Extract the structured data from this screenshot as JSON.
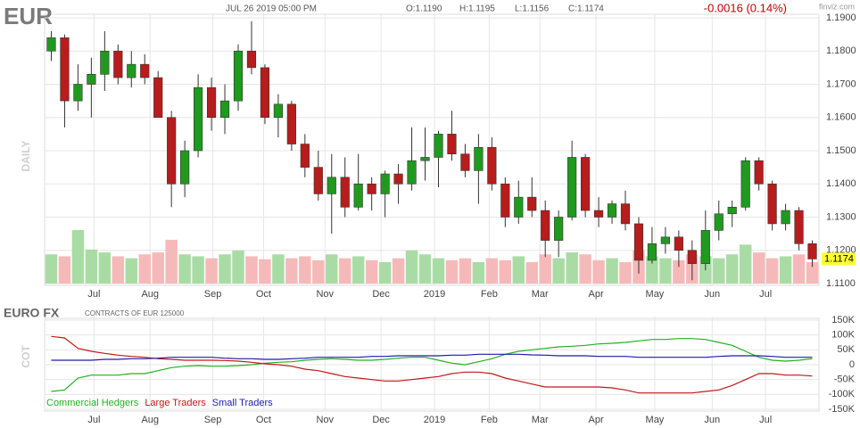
{
  "header": {
    "symbol": "EUR",
    "datetime": "JUL 26 2019 05:00 PM",
    "open": "O:1.1190",
    "high": "H:1.1195",
    "low": "L:1.1156",
    "close": "C:1.1174",
    "change": "-0.0016 (0.14%)",
    "logo": "finviz.com"
  },
  "chart_data": [
    {
      "type": "candlestick",
      "panel_label": "DAILY",
      "open": [
        1.18,
        1.184,
        1.165,
        1.17,
        1.173,
        1.18,
        1.172,
        1.176,
        1.172,
        1.16,
        1.14,
        1.15,
        1.169,
        1.16,
        1.165,
        1.18,
        1.175,
        1.16,
        1.164,
        1.152,
        1.145,
        1.137,
        1.142,
        1.133,
        1.14,
        1.137,
        1.143,
        1.14,
        1.147,
        1.148,
        1.155,
        1.149,
        1.144,
        1.151,
        1.14,
        1.13,
        1.136,
        1.132,
        1.123,
        1.13,
        1.148,
        1.132,
        1.13,
        1.134,
        1.128,
        1.117,
        1.122,
        1.124,
        1.12,
        1.116,
        1.126,
        1.131,
        1.133,
        1.147,
        1.14,
        1.128,
        1.132,
        1.122
      ],
      "high": [
        1.186,
        1.185,
        1.176,
        1.178,
        1.186,
        1.182,
        1.18,
        1.179,
        1.174,
        1.162,
        1.153,
        1.173,
        1.172,
        1.17,
        1.182,
        1.189,
        1.176,
        1.167,
        1.165,
        1.155,
        1.15,
        1.149,
        1.148,
        1.149,
        1.142,
        1.144,
        1.146,
        1.157,
        1.157,
        1.156,
        1.162,
        1.152,
        1.155,
        1.154,
        1.142,
        1.141,
        1.142,
        1.135,
        1.132,
        1.153,
        1.149,
        1.136,
        1.135,
        1.138,
        1.13,
        1.127,
        1.127,
        1.126,
        1.123,
        1.132,
        1.135,
        1.135,
        1.148,
        1.148,
        1.141,
        1.134,
        1.133,
        1.123
      ],
      "low": [
        1.177,
        1.157,
        1.162,
        1.16,
        1.168,
        1.17,
        1.169,
        1.17,
        1.16,
        1.133,
        1.136,
        1.148,
        1.156,
        1.155,
        1.162,
        1.173,
        1.158,
        1.154,
        1.15,
        1.142,
        1.135,
        1.125,
        1.13,
        1.132,
        1.132,
        1.13,
        1.134,
        1.138,
        1.141,
        1.139,
        1.147,
        1.142,
        1.134,
        1.138,
        1.127,
        1.128,
        1.13,
        1.118,
        1.118,
        1.129,
        1.13,
        1.127,
        1.128,
        1.126,
        1.113,
        1.116,
        1.119,
        1.115,
        1.111,
        1.114,
        1.123,
        1.127,
        1.132,
        1.138,
        1.126,
        1.126,
        1.12,
        1.115
      ],
      "close": [
        1.184,
        1.165,
        1.17,
        1.173,
        1.18,
        1.172,
        1.176,
        1.172,
        1.16,
        1.14,
        1.15,
        1.169,
        1.16,
        1.165,
        1.18,
        1.175,
        1.16,
        1.164,
        1.152,
        1.145,
        1.137,
        1.142,
        1.133,
        1.14,
        1.137,
        1.143,
        1.14,
        1.147,
        1.148,
        1.155,
        1.149,
        1.144,
        1.151,
        1.14,
        1.13,
        1.136,
        1.132,
        1.123,
        1.13,
        1.148,
        1.132,
        1.13,
        1.134,
        1.128,
        1.117,
        1.122,
        1.124,
        1.12,
        1.116,
        1.126,
        1.131,
        1.133,
        1.147,
        1.14,
        1.128,
        1.132,
        1.122,
        1.1174
      ],
      "up_color": "#1f9a1f",
      "down_color": "#b81c1c",
      "volume": {
        "values": [
          30,
          28,
          55,
          35,
          32,
          28,
          26,
          30,
          32,
          45,
          30,
          28,
          26,
          30,
          34,
          28,
          25,
          30,
          26,
          28,
          24,
          30,
          26,
          28,
          24,
          22,
          26,
          34,
          30,
          26,
          24,
          26,
          22,
          26,
          24,
          28,
          22,
          30,
          26,
          32,
          30,
          24,
          26,
          22,
          34,
          28,
          26,
          24,
          30,
          28,
          26,
          30,
          40,
          32,
          26,
          28,
          30,
          22
        ],
        "up_color": "#a9dca4",
        "down_color": "#f6b9b9"
      },
      "xlim": [
        -0.5,
        57.5
      ],
      "xticks": [
        {
          "value": 3.2,
          "label": "Jul"
        },
        {
          "value": 7.4,
          "label": "Aug"
        },
        {
          "value": 12.1,
          "label": "Sep"
        },
        {
          "value": 15.9,
          "label": "Oct"
        },
        {
          "value": 20.5,
          "label": "Nov"
        },
        {
          "value": 24.7,
          "label": "Dec"
        },
        {
          "value": 28.7,
          "label": "2019"
        },
        {
          "value": 32.8,
          "label": "Feb"
        },
        {
          "value": 36.6,
          "label": "Mar"
        },
        {
          "value": 40.8,
          "label": "Apr"
        },
        {
          "value": 45.2,
          "label": "May"
        },
        {
          "value": 49.5,
          "label": "Jun"
        },
        {
          "value": 53.5,
          "label": "Jul"
        }
      ],
      "ylim": [
        1.11,
        1.19
      ],
      "yticks": [
        {
          "value": 1.11,
          "label": "1.1100"
        },
        {
          "value": 1.12,
          "label": "1.1200"
        },
        {
          "value": 1.13,
          "label": "1.1300"
        },
        {
          "value": 1.14,
          "label": "1.1400"
        },
        {
          "value": 1.15,
          "label": "1.1500"
        },
        {
          "value": 1.16,
          "label": "1.1600"
        },
        {
          "value": 1.17,
          "label": "1.1700"
        },
        {
          "value": 1.18,
          "label": "1.1800"
        },
        {
          "value": 1.19,
          "label": "1.1900"
        }
      ],
      "grid": true
    },
    {
      "type": "line",
      "title": "EURO FX",
      "subtitle": "CONTRACTS OF EUR 125000",
      "panel_label": "COT",
      "series": [
        {
          "name": "Commercial Hedgers",
          "color": "#22b022",
          "values": [
            -90000,
            -85000,
            -45000,
            -35000,
            -35000,
            -35000,
            -30000,
            -30000,
            -20000,
            -10000,
            -5000,
            -3000,
            -5000,
            -5000,
            -3000,
            0,
            5000,
            8000,
            10000,
            15000,
            18000,
            20000,
            18000,
            15000,
            15000,
            18000,
            22000,
            25000,
            25000,
            15000,
            5000,
            0,
            10000,
            20000,
            35000,
            45000,
            50000,
            55000,
            60000,
            62000,
            65000,
            70000,
            72000,
            75000,
            80000,
            85000,
            85000,
            88000,
            88000,
            85000,
            75000,
            65000,
            45000,
            25000,
            15000,
            12000,
            15000,
            20000
          ]
        },
        {
          "name": "Large Traders",
          "color": "#c01818",
          "values": [
            95000,
            90000,
            55000,
            45000,
            38000,
            32000,
            28000,
            25000,
            20000,
            18000,
            15000,
            15000,
            15000,
            14000,
            12000,
            8000,
            3000,
            0,
            -5000,
            -15000,
            -20000,
            -30000,
            -40000,
            -45000,
            -50000,
            -55000,
            -55000,
            -50000,
            -45000,
            -40000,
            -30000,
            -25000,
            -25000,
            -30000,
            -45000,
            -55000,
            -65000,
            -75000,
            -75000,
            -75000,
            -75000,
            -75000,
            -78000,
            -85000,
            -95000,
            -95000,
            -95000,
            -95000,
            -95000,
            -90000,
            -85000,
            -70000,
            -50000,
            -30000,
            -30000,
            -35000,
            -35000,
            -38000
          ]
        },
        {
          "name": "Small Traders",
          "color": "#1c1ca8",
          "values": [
            15000,
            15000,
            15000,
            15000,
            18000,
            18000,
            20000,
            20000,
            22000,
            25000,
            25000,
            25000,
            25000,
            22000,
            20000,
            20000,
            18000,
            18000,
            20000,
            22000,
            25000,
            25000,
            25000,
            25000,
            28000,
            28000,
            30000,
            30000,
            30000,
            30000,
            32000,
            32000,
            35000,
            35000,
            35000,
            35000,
            33000,
            32000,
            30000,
            30000,
            30000,
            28000,
            28000,
            28000,
            25000,
            25000,
            25000,
            25000,
            25000,
            25000,
            28000,
            30000,
            30000,
            30000,
            28000,
            25000,
            25000,
            25000
          ]
        }
      ],
      "xlim": [
        -0.5,
        57.5
      ],
      "xticks": [
        {
          "value": 3.2,
          "label": "Jul"
        },
        {
          "value": 7.4,
          "label": "Aug"
        },
        {
          "value": 12.1,
          "label": "Sep"
        },
        {
          "value": 15.9,
          "label": "Oct"
        },
        {
          "value": 20.5,
          "label": "Nov"
        },
        {
          "value": 24.7,
          "label": "Dec"
        },
        {
          "value": 28.7,
          "label": "2019"
        },
        {
          "value": 32.8,
          "label": "Feb"
        },
        {
          "value": 36.6,
          "label": "Mar"
        },
        {
          "value": 40.8,
          "label": "Apr"
        },
        {
          "value": 45.2,
          "label": "May"
        },
        {
          "value": 49.5,
          "label": "Jun"
        },
        {
          "value": 53.5,
          "label": "Jul"
        }
      ],
      "ylim": [
        -150000,
        150000
      ],
      "yticks": [
        {
          "value": 150000,
          "label": "150K"
        },
        {
          "value": 100000,
          "label": "100K"
        },
        {
          "value": 50000,
          "label": "50K"
        },
        0,
        {
          "value": -50000,
          "label": "-50K"
        },
        {
          "value": -100000,
          "label": "-100K"
        },
        {
          "value": -150000,
          "label": "-150K"
        }
      ],
      "grid": true
    }
  ]
}
